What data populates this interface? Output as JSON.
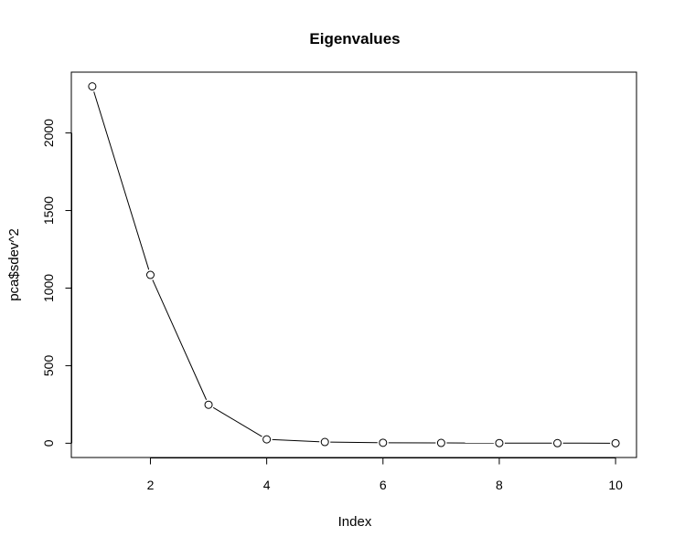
{
  "chart_data": {
    "type": "line",
    "title": "Eigenvalues",
    "xlabel": "Index",
    "ylabel": "pca$sdev^2",
    "x": [
      1,
      2,
      3,
      4,
      5,
      6,
      7,
      8,
      9,
      10
    ],
    "series": [
      {
        "values": [
          2300,
          1085,
          248,
          25,
          8,
          3,
          2,
          1,
          0.5,
          0.2
        ]
      }
    ],
    "xticks": [
      "2",
      "4",
      "6",
      "8",
      "10"
    ],
    "yticks": [
      "0",
      "500",
      "1000",
      "1500",
      "2000"
    ],
    "xlim": [
      0.64,
      10.36
    ],
    "ylim": [
      -92,
      2392
    ],
    "grid": false,
    "marker": "open-circle",
    "color": "#000000"
  }
}
